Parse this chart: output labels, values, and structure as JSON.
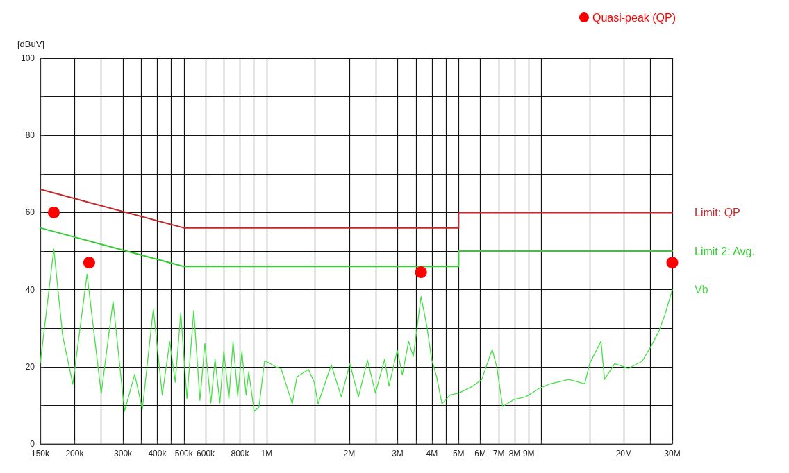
{
  "chart_data": {
    "type": "line",
    "ylabel": "[dBuV]",
    "log": "x",
    "xlim": [
      150000,
      30000000
    ],
    "ylim": [
      0,
      100
    ],
    "xticks": [
      {
        "value": 150000,
        "label": "150k"
      },
      {
        "value": 200000,
        "label": "200k"
      },
      {
        "value": 250000,
        "label": null
      },
      {
        "value": 300000,
        "label": "300k"
      },
      {
        "value": 350000,
        "label": null
      },
      {
        "value": 400000,
        "label": "400k"
      },
      {
        "value": 450000,
        "label": null
      },
      {
        "value": 500000,
        "label": "500k"
      },
      {
        "value": 600000,
        "label": "600k"
      },
      {
        "value": 700000,
        "label": null
      },
      {
        "value": 800000,
        "label": "800k"
      },
      {
        "value": 900000,
        "label": null
      },
      {
        "value": 1000000,
        "label": "1M"
      },
      {
        "value": 1500000,
        "label": null
      },
      {
        "value": 2000000,
        "label": "2M"
      },
      {
        "value": 2500000,
        "label": null
      },
      {
        "value": 3000000,
        "label": "3M"
      },
      {
        "value": 3500000,
        "label": null
      },
      {
        "value": 4000000,
        "label": "4M"
      },
      {
        "value": 4500000,
        "label": null
      },
      {
        "value": 5000000,
        "label": "5M"
      },
      {
        "value": 6000000,
        "label": "6M"
      },
      {
        "value": 7000000,
        "label": "7M"
      },
      {
        "value": 8000000,
        "label": "8M"
      },
      {
        "value": 9000000,
        "label": "9M"
      },
      {
        "value": 10000000,
        "label": null
      },
      {
        "value": 15000000,
        "label": null
      },
      {
        "value": 20000000,
        "label": "20M"
      },
      {
        "value": 25000000,
        "label": null
      },
      {
        "value": 30000000,
        "label": "30M"
      }
    ],
    "yticks": [
      0,
      {
        "value": 10,
        "label": null
      },
      20,
      {
        "value": 30,
        "label": null
      },
      40,
      {
        "value": 50,
        "label": null
      },
      60,
      {
        "value": 70,
        "label": null
      },
      80,
      {
        "value": 90,
        "label": null
      },
      100
    ],
    "grid": true,
    "legend": "top right",
    "marker": "none",
    "line_style": "solid",
    "series": [
      {
        "name": "Limit: QP",
        "color": "#c0282b",
        "x": [
          150000,
          500000,
          5000000,
          5000000,
          30000000
        ],
        "values": [
          66,
          56,
          56,
          60,
          60
        ]
      },
      {
        "name": "Limit 2: Avg.",
        "color": "#33cc33",
        "x": [
          150000,
          500000,
          5000000,
          5000000,
          30000000
        ],
        "values": [
          56,
          46,
          46,
          50,
          50
        ]
      },
      {
        "name": "Vb",
        "color": "#44e044",
        "x": [
          150000,
          168000,
          181000,
          197000,
          222000,
          250000,
          276000,
          304000,
          331000,
          353000,
          387000,
          417000,
          444000,
          465000,
          487000,
          513000,
          543000,
          572000,
          596000,
          627000,
          649000,
          676000,
          699000,
          729000,
          755000,
          785000,
          813000,
          842000,
          861000,
          901000,
          938000,
          983000,
          1020000,
          1077000,
          1128000,
          1240000,
          1290000,
          1420000,
          1490000,
          1540000,
          1720000,
          1870000,
          2010000,
          2160000,
          2330000,
          2490000,
          2690000,
          2790000,
          2990000,
          3120000,
          3290000,
          3420000,
          3580000,
          3650000,
          3830000,
          3990000,
          4160000,
          4350000,
          4660000,
          5020000,
          5640000,
          6070000,
          6630000,
          6900000,
          7230000,
          7950000,
          8770000,
          9840000,
          10800000,
          12600000,
          14400000,
          15000000,
          16500000,
          17000000,
          18500000,
          20800000,
          23300000,
          25100000,
          26800000,
          28200000,
          30000000
        ],
        "values": [
          21,
          50.5,
          28,
          15.5,
          44,
          13,
          37,
          8.5,
          18,
          9,
          35,
          12.7,
          26.5,
          16,
          34,
          11.7,
          34.6,
          11.3,
          26,
          10.6,
          22,
          10.6,
          24,
          11.7,
          26.5,
          12.4,
          24,
          12.7,
          18.7,
          8.5,
          9.5,
          21.5,
          21,
          20,
          19.6,
          10.4,
          17.4,
          19.3,
          16,
          10.4,
          20.5,
          12.2,
          20.8,
          12.2,
          21.7,
          13.2,
          21.9,
          15,
          24.3,
          17.9,
          26.6,
          22.6,
          33.5,
          38.2,
          30.6,
          21.9,
          17.4,
          10.4,
          12.7,
          13.2,
          15,
          16.7,
          24.5,
          19.6,
          9.7,
          11.5,
          12.2,
          14.4,
          15.6,
          16.7,
          15.6,
          20.8,
          26.6,
          16.7,
          20.8,
          19.6,
          21.4,
          25.3,
          29.2,
          33.5,
          40
        ]
      },
      {
        "name": "Quasi-peak (QP)",
        "type": "scatter",
        "marker": "circle",
        "color": "#ff0000",
        "x": [
          168000,
          226000,
          3650000,
          30000000
        ],
        "values": [
          60,
          47,
          44.5,
          47
        ]
      }
    ]
  }
}
